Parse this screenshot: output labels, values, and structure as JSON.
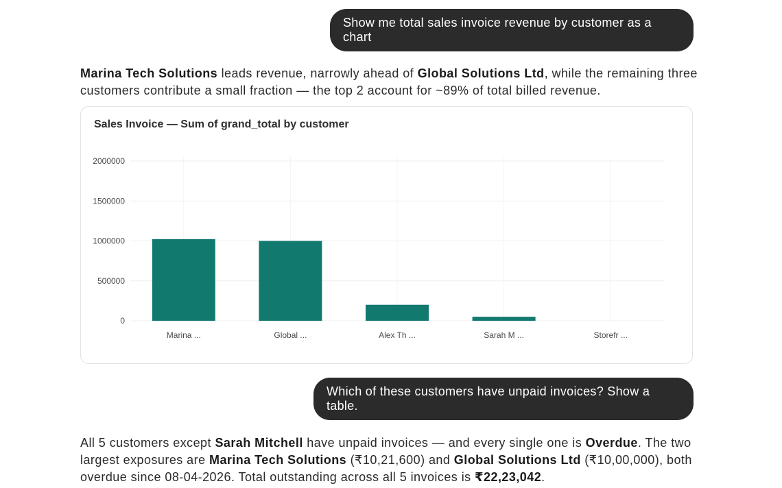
{
  "conversation": {
    "user_message_1": "Show me total sales invoice revenue by customer as a chart",
    "answer_1": {
      "name_1": "Marina Tech Solutions",
      "text_1": " leads revenue, narrowly ahead of ",
      "name_2": "Global Solutions Ltd",
      "text_2": ", while the remaining three customers contribute a small fraction — the top 2 account for ~89% of total billed revenue."
    },
    "user_message_2": "Which of these customers have unpaid invoices? Show a table.",
    "answer_2": {
      "text_1": "All 5 customers except ",
      "name_1": "Sarah Mitchell",
      "text_2": " have unpaid invoices — and every single one is ",
      "status": "Overdue",
      "text_3": ". The two largest exposures are ",
      "name_2": "Marina Tech Solutions",
      "text_4": " (₹10,21,600) and ",
      "name_3": "Global Solutions Ltd",
      "text_5": " (₹10,00,000), both overdue since 08-04-2026. Total outstanding across all 5 invoices is ",
      "total": "₹22,23,042",
      "text_6": "."
    }
  },
  "chart_data": {
    "type": "bar",
    "title": "Sales Invoice — Sum of grand_total by customer",
    "categories": [
      "Marina ...",
      "Global ...",
      "Alex Th ...",
      "Sarah M ...",
      "Storefr ..."
    ],
    "values": [
      1021600,
      1000000,
      200000,
      50000,
      0
    ],
    "yticks": [
      "0",
      "500000",
      "1000000",
      "1500000",
      "2000000"
    ],
    "ylim": [
      0,
      2000000
    ],
    "bar_color": "#12796f",
    "grid": true
  }
}
